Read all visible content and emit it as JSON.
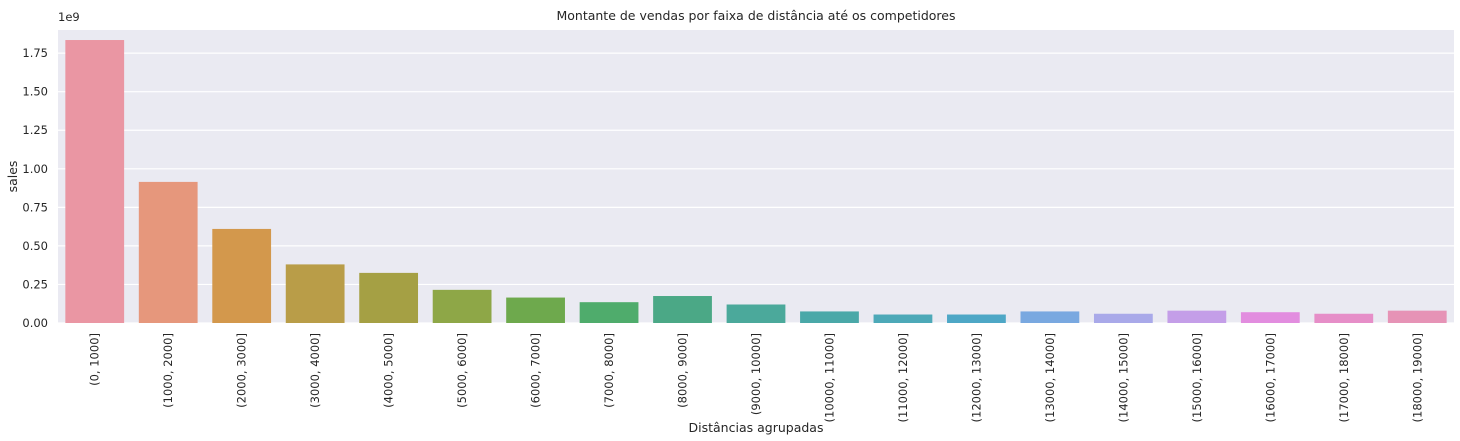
{
  "chart_data": {
    "type": "bar",
    "title": "Montante de vendas por faixa de distância até os competidores",
    "xlabel": "Distâncias agrupadas",
    "ylabel": "sales",
    "y_scale_label": "1e9",
    "ylim": [
      0,
      1.9
    ],
    "y_scale": 1000000000,
    "yticks": [
      "0.00",
      "0.25",
      "0.50",
      "0.75",
      "1.00",
      "1.25",
      "1.50",
      "1.75"
    ],
    "grid": true,
    "categories": [
      "(0, 1000]",
      "(1000, 2000]",
      "(2000, 3000]",
      "(3000, 4000]",
      "(4000, 5000]",
      "(5000, 6000]",
      "(6000, 7000]",
      "(7000, 8000]",
      "(8000, 9000]",
      "(9000, 10000]",
      "(10000, 11000]",
      "(11000, 12000]",
      "(12000, 13000]",
      "(13000, 14000]",
      "(14000, 15000]",
      "(15000, 16000]",
      "(16000, 17000]",
      "(17000, 18000]",
      "(18000, 19000]"
    ],
    "values": [
      1.835,
      0.915,
      0.61,
      0.38,
      0.325,
      0.215,
      0.165,
      0.135,
      0.175,
      0.12,
      0.075,
      0.055,
      0.055,
      0.075,
      0.06,
      0.08,
      0.07,
      0.06,
      0.08
    ],
    "colors": [
      "#ea96a3",
      "#e6977c",
      "#d3984c",
      "#b99d48",
      "#a5a044",
      "#8ea747",
      "#6ea94d",
      "#4fac6c",
      "#4ba886",
      "#4ba99b",
      "#4aa8a8",
      "#4da9b8",
      "#4ea7c6",
      "#79a8e0",
      "#a9a9e9",
      "#c49ee8",
      "#e28ddf",
      "#e68ec8",
      "#e693b6"
    ],
    "background": "#eaeaf2"
  }
}
